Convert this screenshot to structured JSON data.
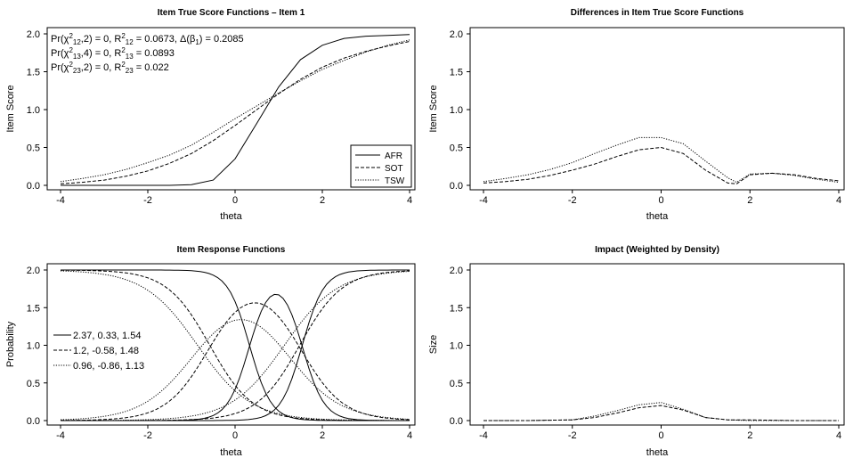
{
  "chart_data": [
    {
      "type": "line",
      "title": "Item True Score Functions – Item 1",
      "xlabel": "theta",
      "ylabel": "Item Score",
      "xlim": [
        -4,
        4
      ],
      "ylim": [
        0,
        2
      ],
      "xticks": [
        "-4",
        "-2",
        "0",
        "2",
        "4"
      ],
      "yticks": [
        "0.0",
        "0.5",
        "1.0",
        "1.5",
        "2.0"
      ],
      "legend_position": "bottom-right",
      "annotations": [
        "Pr(χ²₁₂,2) = 0, R²₁₂ = 0.0673, Δ(β₁) = 0.2085",
        "Pr(χ²₁₃,4) = 0, R²₁₃ = 0.0893",
        "Pr(χ²₂₃,2) = 0, R²₂₃ = 0.022"
      ],
      "x": [
        -4,
        -3.5,
        -3,
        -2.5,
        -2,
        -1.5,
        -1,
        -0.5,
        0,
        0.5,
        1,
        1.5,
        2,
        2.5,
        3,
        3.5,
        4
      ],
      "series": [
        {
          "name": "AFR",
          "style": "solid",
          "values": [
            0.0,
            0.0,
            0.0,
            0.0,
            0.0,
            0.0,
            0.01,
            0.07,
            0.35,
            0.82,
            1.3,
            1.66,
            1.85,
            1.94,
            1.97,
            1.98,
            1.99
          ]
        },
        {
          "name": "SOT",
          "style": "dashed",
          "values": [
            0.02,
            0.04,
            0.07,
            0.12,
            0.19,
            0.29,
            0.42,
            0.59,
            0.79,
            1.0,
            1.21,
            1.4,
            1.56,
            1.68,
            1.77,
            1.84,
            1.9
          ]
        },
        {
          "name": "TSW",
          "style": "dotted",
          "values": [
            0.05,
            0.09,
            0.14,
            0.21,
            0.3,
            0.4,
            0.53,
            0.7,
            0.88,
            1.05,
            1.22,
            1.38,
            1.53,
            1.65,
            1.76,
            1.85,
            1.92
          ]
        }
      ]
    },
    {
      "type": "line",
      "title": "Differences in Item True Score Functions",
      "xlabel": "theta",
      "ylabel": "Item Score",
      "xlim": [
        -4,
        4
      ],
      "ylim": [
        0,
        2
      ],
      "xticks": [
        "-4",
        "-2",
        "0",
        "2",
        "4"
      ],
      "yticks": [
        "0.0",
        "0.5",
        "1.0",
        "1.5",
        "2.0"
      ],
      "x": [
        -4,
        -3.5,
        -3,
        -2.5,
        -2,
        -1.5,
        -1,
        -0.5,
        0,
        0.5,
        1,
        1.5,
        1.7,
        2,
        2.5,
        3,
        3.5,
        4
      ],
      "series": [
        {
          "style": "dashed",
          "values": [
            0.03,
            0.05,
            0.08,
            0.13,
            0.2,
            0.28,
            0.38,
            0.47,
            0.5,
            0.42,
            0.2,
            0.03,
            0.02,
            0.14,
            0.16,
            0.14,
            0.09,
            0.06
          ]
        },
        {
          "style": "dotted",
          "values": [
            0.05,
            0.09,
            0.14,
            0.21,
            0.3,
            0.42,
            0.53,
            0.63,
            0.63,
            0.55,
            0.32,
            0.1,
            0.04,
            0.15,
            0.16,
            0.13,
            0.08,
            0.04
          ]
        }
      ]
    },
    {
      "type": "line",
      "title": "Item Response Functions",
      "xlabel": "theta",
      "ylabel": "Probability",
      "xlim": [
        -4,
        4
      ],
      "ylim": [
        0,
        2
      ],
      "xticks": [
        "-4",
        "-2",
        "0",
        "2",
        "4"
      ],
      "yticks": [
        "0.0",
        "0.5",
        "1.0",
        "1.5",
        "2.0"
      ],
      "legend_position": "middle-left",
      "groups": [
        {
          "name": "2.37, 0.33, 1.54",
          "style": "solid",
          "a": 2.37,
          "b1": 0.33,
          "b2": 1.54
        },
        {
          "name": "1.2, -0.58, 1.48",
          "style": "dashed",
          "a": 1.2,
          "b1": -0.58,
          "b2": 1.48
        },
        {
          "name": "0.96, -0.86, 1.13",
          "style": "dotted",
          "a": 0.96,
          "b1": -0.86,
          "b2": 1.13
        }
      ]
    },
    {
      "type": "line",
      "title": "Impact (Weighted by Density)",
      "xlabel": "theta",
      "ylabel": "Size",
      "xlim": [
        -4,
        4
      ],
      "ylim": [
        0,
        2
      ],
      "xticks": [
        "-4",
        "-2",
        "0",
        "2",
        "4"
      ],
      "yticks": [
        "0.0",
        "0.5",
        "1.0",
        "1.5",
        "2.0"
      ],
      "x": [
        -4,
        -3,
        -2,
        -1.5,
        -1,
        -0.5,
        0,
        0.5,
        1,
        1.5,
        2,
        3,
        4
      ],
      "series": [
        {
          "style": "dashed",
          "values": [
            0.0,
            0.0,
            0.01,
            0.04,
            0.1,
            0.17,
            0.2,
            0.14,
            0.04,
            0.01,
            0.01,
            0.0,
            0.0
          ]
        },
        {
          "style": "dotted",
          "values": [
            0.0,
            0.0,
            0.01,
            0.06,
            0.13,
            0.21,
            0.24,
            0.15,
            0.04,
            0.01,
            0.0,
            0.0,
            0.0
          ]
        }
      ]
    }
  ]
}
